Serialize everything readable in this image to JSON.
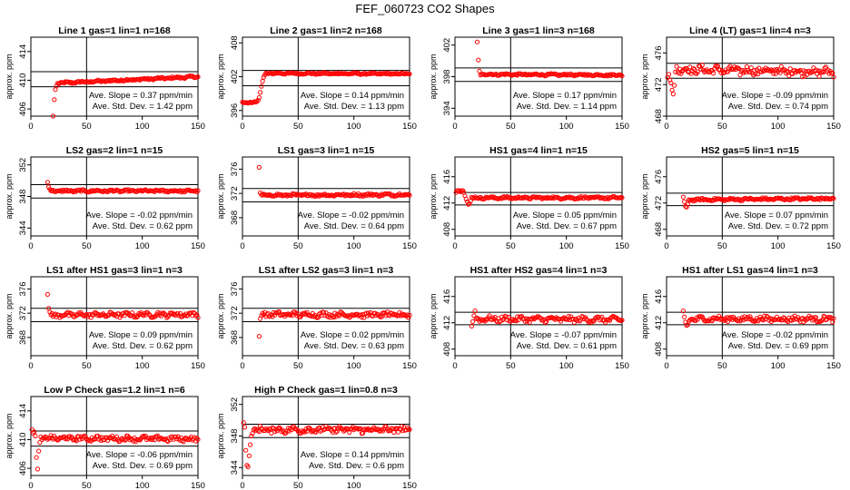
{
  "figure_title": "FEF_060723  CO2 Shapes",
  "colors": {
    "points": "#ff0000",
    "axes": "#000000"
  },
  "chart_data": [
    {
      "type": "scatter",
      "title": "Line 1 gas=1 lin=1 n=168",
      "ylabel": "approx. ppm",
      "xlim": [
        0,
        150
      ],
      "ylim": [
        405,
        416
      ],
      "yticks": [
        406,
        410,
        414
      ],
      "hlines": [
        411.2,
        409.1
      ],
      "vline_x": 50,
      "slope_label": "Ave. Slope =",
      "slope": "0.37",
      "slope_unit": "ppm/min",
      "sd_label": "Ave. Std. Dev. =",
      "sd": "1.42",
      "sd_unit": "ppm",
      "x_start": 20,
      "base": 409.6,
      "base_end": 410.5,
      "noise": 0.12,
      "start_values": [
        405.0,
        407.3,
        408.7,
        409.2
      ]
    },
    {
      "type": "scatter",
      "title": "Line 2 gas=1 lin=2 n=168",
      "ylabel": "approx. ppm",
      "xlim": [
        0,
        150
      ],
      "ylim": [
        395,
        409
      ],
      "yticks": [
        396,
        402,
        408
      ],
      "hlines": [
        403.1,
        400.4
      ],
      "vline_x": 50,
      "slope_label": "Ave. Slope =",
      "slope": "0.14",
      "slope_unit": "ppm/min",
      "sd_label": "Ave. Std. Dev. =",
      "sd": "1.13",
      "sd_unit": "ppm",
      "x_start": 0,
      "base": 402.6,
      "base_end": 402.5,
      "noise": 0.12,
      "start_values": [
        397.5,
        397.4,
        397.4,
        397.4,
        397.4,
        397.3,
        397.4,
        397.5,
        397.4,
        397.4,
        397.5,
        397.6,
        397.5,
        397.6,
        397.8,
        398.3,
        399.2,
        400.3,
        401.2,
        401.9,
        402.3
      ]
    },
    {
      "type": "scatter",
      "title": "Line 3 gas=1 lin=3 n=168",
      "ylabel": "approx. ppm",
      "xlim": [
        0,
        150
      ],
      "ylim": [
        393,
        403
      ],
      "yticks": [
        394,
        398,
        402
      ],
      "hlines": [
        399.1,
        397.4
      ],
      "vline_x": 50,
      "slope_label": "Ave. Slope =",
      "slope": "0.17",
      "slope_unit": "ppm/min",
      "sd_label": "Ave. Std. Dev. =",
      "sd": "1.14",
      "sd_unit": "ppm",
      "x_start": 20,
      "base": 398.3,
      "base_end": 398.2,
      "noise": 0.1,
      "start_values": [
        402.4,
        400.1,
        398.7
      ]
    },
    {
      "type": "scatter",
      "title": "Line 4 (LT) gas=1 lin=4 n=3",
      "ylabel": "approx. ppm",
      "xlim": [
        0,
        150
      ],
      "ylim": [
        468,
        478
      ],
      "yticks": [
        468,
        472,
        476
      ],
      "hlines": [
        474.7,
        472.8
      ],
      "vline_x": 50,
      "slope_label": "Ave. Slope =",
      "slope": "-0.09",
      "slope_unit": "ppm/min",
      "sd_label": "Ave. Std. Dev. =",
      "sd": "0.74",
      "sd_unit": "ppm",
      "x_start": 1,
      "base": 473.9,
      "base_end": 473.6,
      "noise": 0.45,
      "start_values": [
        472.9,
        473.3,
        472.6,
        472.2,
        471.3,
        470.8,
        471.9,
        473.6,
        474.3
      ]
    },
    {
      "type": "scatter",
      "title": "LS2 gas=2 lin=1 n=15",
      "ylabel": "approx. ppm",
      "xlim": [
        0,
        150
      ],
      "ylim": [
        343,
        353
      ],
      "yticks": [
        344,
        348,
        352
      ],
      "hlines": [
        349.5,
        347.8
      ],
      "vline_x": 50,
      "slope_label": "Ave. Slope =",
      "slope": "-0.02",
      "slope_unit": "ppm/min",
      "sd_label": "Ave. Std. Dev. =",
      "sd": "0.62",
      "sd_unit": "ppm",
      "x_start": 15,
      "base": 348.7,
      "base_end": 348.7,
      "noise": 0.12,
      "start_values": [
        349.8,
        349.2,
        348.9
      ]
    },
    {
      "type": "scatter",
      "title": "LS1 gas=3 lin=1 n=15",
      "ylabel": "approx. ppm",
      "xlim": [
        0,
        150
      ],
      "ylim": [
        365,
        378
      ],
      "yticks": [
        368,
        372,
        376
      ],
      "hlines": [
        372.8,
        370.6
      ],
      "vline_x": 50,
      "slope_label": "Ave. Slope =",
      "slope": "-0.02",
      "slope_unit": "ppm/min",
      "sd_label": "Ave. Std. Dev. =",
      "sd": "0.64",
      "sd_unit": "ppm",
      "x_start": 15,
      "base": 371.7,
      "base_end": 371.8,
      "noise": 0.18,
      "start_values": [
        376.3,
        372.1,
        371.8
      ]
    },
    {
      "type": "scatter",
      "title": "HS1 gas=4 lin=1 n=15",
      "ylabel": "approx. ppm",
      "xlim": [
        0,
        150
      ],
      "ylim": [
        407,
        419
      ],
      "yticks": [
        408,
        412,
        416
      ],
      "hlines": [
        413.6,
        411.7
      ],
      "vline_x": 50,
      "slope_label": "Ave. Slope =",
      "slope": "0.05",
      "slope_unit": "ppm/min",
      "sd_label": "Ave. Std. Dev. =",
      "sd": "0.67",
      "sd_unit": "ppm",
      "x_start": 1,
      "base": 412.8,
      "base_end": 412.8,
      "noise": 0.15,
      "start_values": [
        413.6,
        413.9,
        413.8,
        413.9,
        413.7,
        413.8,
        413.9,
        413.6,
        413.1,
        412.6,
        412.2,
        411.8,
        411.9,
        412.3
      ]
    },
    {
      "type": "scatter",
      "title": "HS2 gas=5 lin=1 n=15",
      "ylabel": "approx. ppm",
      "xlim": [
        0,
        150
      ],
      "ylim": [
        467,
        479
      ],
      "yticks": [
        468,
        472,
        476
      ],
      "hlines": [
        473.5,
        471.6
      ],
      "vline_x": 50,
      "slope_label": "Ave. Slope =",
      "slope": "0.07",
      "slope_unit": "ppm/min",
      "sd_label": "Ave. Std. Dev. =",
      "sd": "0.72",
      "sd_unit": "ppm",
      "x_start": 15,
      "base": 472.5,
      "base_end": 472.7,
      "noise": 0.15,
      "start_values": [
        472.9,
        472.2,
        471.5,
        471.4,
        471.8
      ]
    },
    {
      "type": "scatter",
      "title": "LS1 after HS1 gas=3 lin=1 n=3",
      "ylabel": "approx. ppm",
      "xlim": [
        0,
        150
      ],
      "ylim": [
        365,
        378
      ],
      "yticks": [
        368,
        372,
        376
      ],
      "hlines": [
        372.8,
        370.6
      ],
      "vline_x": 50,
      "slope_label": "Ave. Slope =",
      "slope": "0.09",
      "slope_unit": "ppm/min",
      "sd_label": "Ave. Std. Dev. =",
      "sd": "0.62",
      "sd_unit": "ppm",
      "x_start": 15,
      "base": 371.7,
      "base_end": 371.8,
      "noise": 0.35,
      "start_values": [
        375.1,
        372.8,
        372.2
      ]
    },
    {
      "type": "scatter",
      "title": "LS1 after LS2 gas=3 lin=1 n=3",
      "ylabel": "approx. ppm",
      "xlim": [
        0,
        150
      ],
      "ylim": [
        365,
        378
      ],
      "yticks": [
        368,
        372,
        376
      ],
      "hlines": [
        372.8,
        370.6
      ],
      "vline_x": 50,
      "slope_label": "Ave. Slope =",
      "slope": "0.02",
      "slope_unit": "ppm/min",
      "sd_label": "Ave. Std. Dev. =",
      "sd": "0.63",
      "sd_unit": "ppm",
      "x_start": 15,
      "base": 371.8,
      "base_end": 371.7,
      "noise": 0.35,
      "start_values": [
        368.2,
        371.1,
        371.6
      ]
    },
    {
      "type": "scatter",
      "title": "HS1 after HS2 gas=4 lin=1 n=3",
      "ylabel": "approx. ppm",
      "xlim": [
        0,
        150
      ],
      "ylim": [
        407,
        419
      ],
      "yticks": [
        408,
        412,
        416
      ],
      "hlines": [
        413.6,
        411.7
      ],
      "vline_x": 50,
      "slope_label": "Ave. Slope =",
      "slope": "-0.07",
      "slope_unit": "ppm/min",
      "sd_label": "Ave. Std. Dev. =",
      "sd": "0.61",
      "sd_unit": "ppm",
      "x_start": 15,
      "base": 412.6,
      "base_end": 412.5,
      "noise": 0.35,
      "start_values": [
        411.5,
        412.2,
        413.1,
        413.8
      ]
    },
    {
      "type": "scatter",
      "title": "HS1 after LS1 gas=4 lin=1 n=3",
      "ylabel": "approx. ppm",
      "xlim": [
        0,
        150
      ],
      "ylim": [
        407,
        419
      ],
      "yticks": [
        408,
        412,
        416
      ],
      "hlines": [
        413.6,
        411.7
      ],
      "vline_x": 50,
      "slope_label": "Ave. Slope =",
      "slope": "-0.02",
      "slope_unit": "ppm/min",
      "sd_label": "Ave. Std. Dev. =",
      "sd": "0.69",
      "sd_unit": "ppm",
      "x_start": 15,
      "base": 412.6,
      "base_end": 412.6,
      "noise": 0.35,
      "start_values": [
        413.8,
        412.9,
        412.1,
        411.6,
        411.7,
        412.2
      ]
    },
    {
      "type": "scatter",
      "title": "Low P Check gas=1.2 lin=1 n=6",
      "ylabel": "approx. ppm",
      "xlim": [
        0,
        150
      ],
      "ylim": [
        405,
        416
      ],
      "yticks": [
        406,
        410,
        414
      ],
      "hlines": [
        411.2,
        409.1
      ],
      "vline_x": 50,
      "slope_label": "Ave. Slope =",
      "slope": "-0.06",
      "slope_unit": "ppm/min",
      "sd_label": "Ave. Std. Dev. =",
      "sd": "0.69",
      "sd_unit": "ppm",
      "x_start": 1,
      "base": 410.2,
      "base_end": 410.1,
      "noise": 0.3,
      "start_values": [
        411.4,
        410.9,
        411.1,
        410.5,
        407.5,
        405.9,
        408.4,
        409.6
      ]
    },
    {
      "type": "scatter",
      "title": "High P Check gas=1 lin=0.8 n=3",
      "ylabel": "approx. ppm",
      "xlim": [
        0,
        150
      ],
      "ylim": [
        343,
        353
      ],
      "yticks": [
        344,
        348,
        352
      ],
      "hlines": [
        349.5,
        347.8
      ],
      "vline_x": 50,
      "slope_label": "Ave. Slope =",
      "slope": "0.14",
      "slope_unit": "ppm/min",
      "sd_label": "Ave. Std. Dev. =",
      "sd": "0.6",
      "sd_unit": "ppm",
      "x_start": 1,
      "base": 348.8,
      "base_end": 348.8,
      "noise": 0.35,
      "start_values": [
        349.7,
        349.1,
        346.2,
        344.3,
        344.1,
        345.5,
        346.9,
        348.0
      ]
    }
  ]
}
